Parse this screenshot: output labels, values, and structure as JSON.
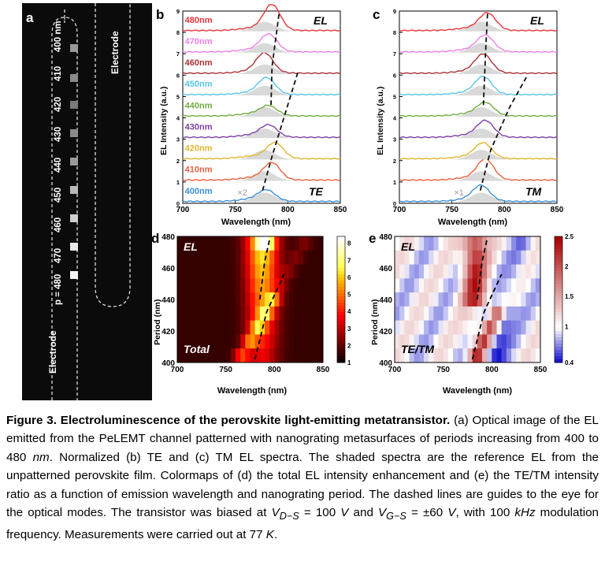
{
  "panel_letters": {
    "a": "a",
    "b": "b",
    "c": "c",
    "d": "d",
    "e": "e"
  },
  "panel_a": {
    "electrode_top": "Electrode",
    "electrode_bottom": "Electrode",
    "period_prefix": "p = 480",
    "periods": [
      "470",
      "460",
      "450",
      "440",
      "430",
      "420",
      "410",
      "400 nm"
    ]
  },
  "panel_b": {
    "ylabel": "EL Intensity (a.u.)",
    "xlabel": "Wavelength (nm)",
    "xticks": [
      "700",
      "750",
      "800",
      "850"
    ],
    "yticks": [
      "0",
      "1",
      "2",
      "3",
      "4",
      "5",
      "6",
      "7",
      "8",
      "9"
    ],
    "tag_top": "EL",
    "tag_bottom": "TE",
    "scale_note": "×2"
  },
  "panel_c": {
    "ylabel": "EL Intensity (a.u.)",
    "xlabel": "Wavelength (nm)",
    "xticks": [
      "700",
      "750",
      "800",
      "850"
    ],
    "yticks": [
      "0",
      "1",
      "2",
      "3",
      "4",
      "5",
      "6",
      "7",
      "8",
      "9"
    ],
    "tag_top": "EL",
    "tag_bottom": "TM",
    "scale_note": "×1"
  },
  "panel_d": {
    "ylabel": "Period (nm)",
    "xlabel": "Wavelength (nm)",
    "xticks": [
      "700",
      "750",
      "800",
      "850"
    ],
    "yticks": [
      "480",
      "460",
      "440",
      "420",
      "400"
    ],
    "tag_top": "EL",
    "tag_bottom": "Total",
    "colorbar_ticks": [
      "8",
      "7",
      "6",
      "5",
      "4",
      "3",
      "2",
      "1"
    ]
  },
  "panel_e": {
    "ylabel": "Period (nm)",
    "xlabel": "Wavelength (nm)",
    "xticks": [
      "700",
      "750",
      "800",
      "850"
    ],
    "yticks": [
      "480",
      "460",
      "440",
      "420",
      "400"
    ],
    "tag_top": "EL",
    "tag_bottom": "TE/TM",
    "colorbar_ticks": [
      "2.5",
      "2",
      "1.5",
      "1",
      "0.4"
    ]
  },
  "chart_data": [
    {
      "type": "line",
      "panel": "b",
      "title": "",
      "xlabel": "Wavelength (nm)",
      "ylabel": "EL Intensity (a.u.)",
      "xlim": [
        700,
        850
      ],
      "ylim": [
        0,
        9
      ],
      "series": [
        {
          "name": "400nm",
          "color": "#3a8fd6",
          "offset": 0,
          "peak": 780,
          "amp": 0.45
        },
        {
          "name": "410nm",
          "color": "#e8603c",
          "offset": 1,
          "peak": 785,
          "amp": 0.75
        },
        {
          "name": "420nm",
          "color": "#e3b52c",
          "offset": 2,
          "peak": 788,
          "amp": 0.7
        },
        {
          "name": "430nm",
          "color": "#7c3fa6",
          "offset": 3,
          "peak": 782,
          "amp": 0.5
        },
        {
          "name": "440nm",
          "color": "#6fad3f",
          "offset": 4,
          "peak": 782,
          "amp": 0.4
        },
        {
          "name": "450nm",
          "color": "#58c5ea",
          "offset": 5,
          "peak": 780,
          "amp": 0.7
        },
        {
          "name": "460nm",
          "color": "#a83234",
          "offset": 6,
          "peak": 778,
          "amp": 0.85
        },
        {
          "name": "470nm",
          "color": "#ee7fe6",
          "offset": 7,
          "peak": 782,
          "amp": 0.75
        },
        {
          "name": "480nm",
          "color": "#e8343a",
          "offset": 8,
          "peak": 785,
          "amp": 1.15
        }
      ]
    },
    {
      "type": "line",
      "panel": "c",
      "title": "",
      "xlabel": "Wavelength (nm)",
      "ylabel": "EL Intensity (a.u.)",
      "xlim": [
        700,
        850
      ],
      "ylim": [
        0,
        9
      ],
      "series": [
        {
          "name": "400nm",
          "color": "#3a8fd6",
          "offset": 0,
          "peak": 778,
          "amp": 0.65
        },
        {
          "name": "410nm",
          "color": "#e8603c",
          "offset": 1,
          "peak": 782,
          "amp": 0.9
        },
        {
          "name": "420nm",
          "color": "#e3b52c",
          "offset": 2,
          "peak": 780,
          "amp": 0.65
        },
        {
          "name": "430nm",
          "color": "#7c3fa6",
          "offset": 3,
          "peak": 782,
          "amp": 0.7
        },
        {
          "name": "440nm",
          "color": "#6fad3f",
          "offset": 4,
          "peak": 782,
          "amp": 0.55
        },
        {
          "name": "450nm",
          "color": "#58c5ea",
          "offset": 5,
          "peak": 780,
          "amp": 0.75
        },
        {
          "name": "460nm",
          "color": "#a83234",
          "offset": 6,
          "peak": 780,
          "amp": 0.8
        },
        {
          "name": "470nm",
          "color": "#ee7fe6",
          "offset": 7,
          "peak": 782,
          "amp": 0.7
        },
        {
          "name": "480nm",
          "color": "#e8343a",
          "offset": 8,
          "peak": 784,
          "amp": 0.75
        }
      ]
    },
    {
      "type": "heatmap",
      "panel": "d",
      "xlabel": "Wavelength (nm)",
      "ylabel": "Period (nm)",
      "xlim": [
        700,
        850
      ],
      "ylim": [
        400,
        480
      ],
      "colorbar_range": [
        1,
        8
      ]
    },
    {
      "type": "heatmap",
      "panel": "e",
      "xlabel": "Wavelength (nm)",
      "ylabel": "Period (nm)",
      "xlim": [
        700,
        850
      ],
      "ylim": [
        400,
        480
      ],
      "colorbar_range": [
        0.4,
        2.5
      ]
    }
  ],
  "caption": {
    "bold": "Figure 3. Electroluminescence of the perovskite light-emitting metatransistor.",
    "text1": " (a) Optical image of the EL emitted from the PeLEMT channel patterned with nanograting metasurfaces of periods increasing from 400 to 480 ",
    "unit_nm": "nm",
    "text2": ". Normalized (b) TE and (c) TM EL spectra. The shaded spectra are the reference EL from the unpatterned perovskite film. Colormaps of (d) the total EL intensity enhancement and (e) the TE/TM intensity ratio as a function of emission wavelength and nanograting period. The dashed lines are guides to the eye for the optical modes. The transistor was biased at ",
    "vds": "V",
    "vds_sub": "D−S",
    "vds_val": " = 100 ",
    "v_unit1": "V",
    "and": " and ",
    "vgs": "V",
    "vgs_sub": "G−S",
    "vgs_val": " = ±60 ",
    "v_unit2": "V",
    "text3": ", with 100 ",
    "khz": "kHz",
    "text4": " modulation frequency. Measurements were carried out at 77 ",
    "kelvin": "K",
    "text5": "."
  }
}
